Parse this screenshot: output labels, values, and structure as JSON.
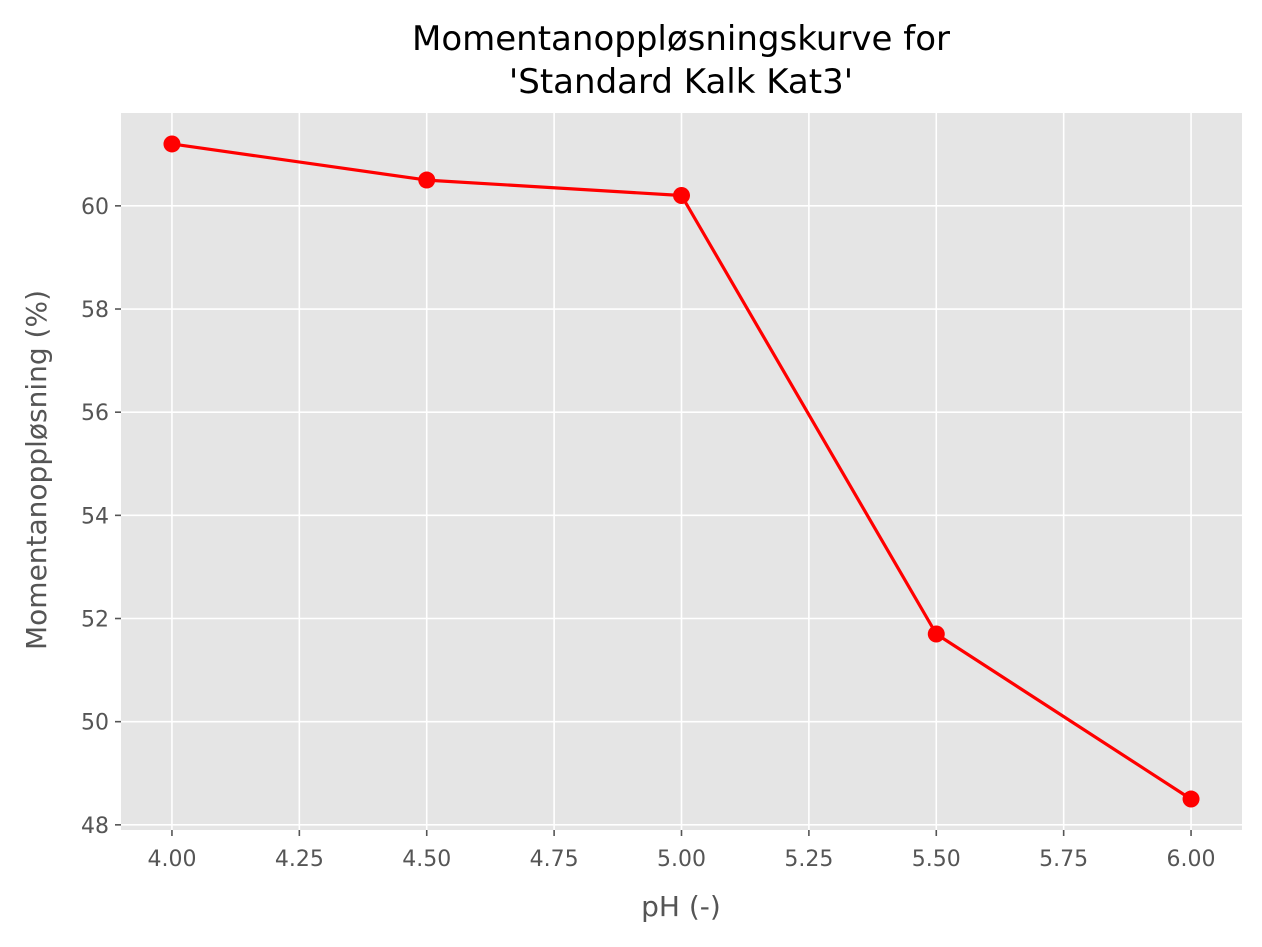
{
  "chart_data": {
    "type": "line",
    "title": [
      "Momentanoppløsningskurve for",
      "'Standard Kalk Kat3'"
    ],
    "xlabel": "pH (-)",
    "ylabel": "Momentanoppløsning (%)",
    "x": [
      4.0,
      4.5,
      5.0,
      5.5,
      6.0
    ],
    "series": [
      {
        "name": "",
        "values": [
          61.2,
          60.5,
          60.2,
          51.7,
          48.5
        ],
        "color": "#ff0000",
        "marker": "circle"
      }
    ],
    "xlim": [
      3.9,
      6.1
    ],
    "ylim": [
      47.9,
      61.8
    ],
    "xticks": [
      4.0,
      4.25,
      4.5,
      4.75,
      5.0,
      5.25,
      5.5,
      5.75,
      6.0
    ],
    "xtick_labels": [
      "4.00",
      "4.25",
      "4.50",
      "4.75",
      "5.00",
      "5.25",
      "5.50",
      "5.75",
      "6.00"
    ],
    "yticks": [
      48,
      50,
      52,
      54,
      56,
      58,
      60
    ],
    "ytick_labels": [
      "48",
      "50",
      "52",
      "54",
      "56",
      "58",
      "60"
    ],
    "grid": true,
    "style": "ggplot",
    "background_color": "#e5e5e5",
    "grid_color": "#ffffff"
  }
}
